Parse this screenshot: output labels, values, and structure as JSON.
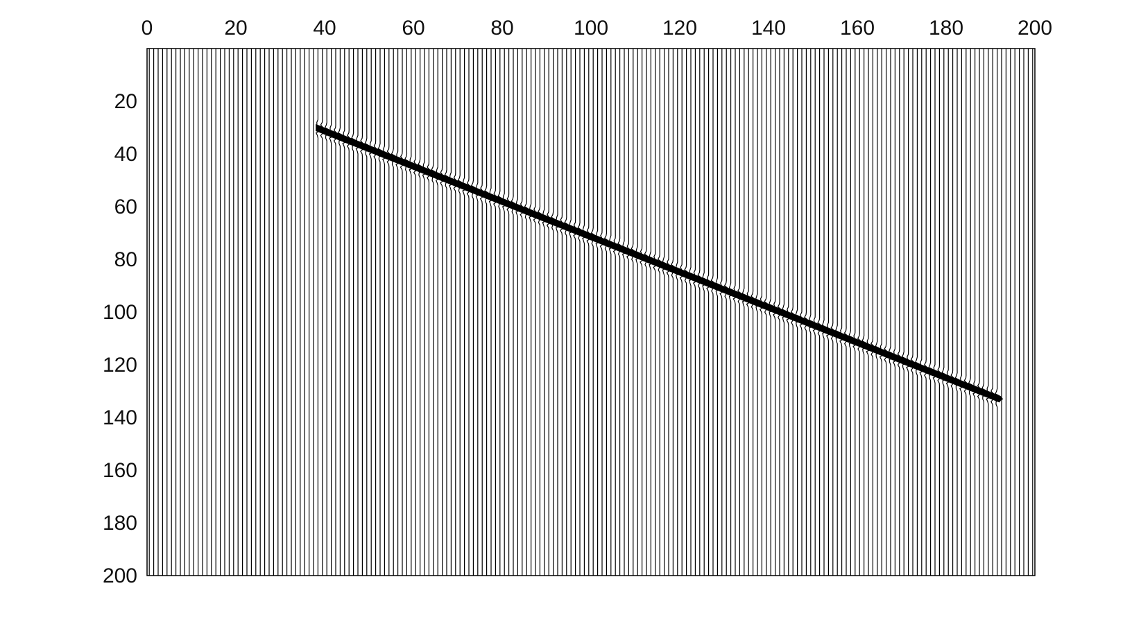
{
  "chart_data": {
    "type": "wiggle",
    "title": "",
    "xlabel": "",
    "ylabel": "",
    "xlim": [
      0,
      200
    ],
    "ylim": [
      200,
      0
    ],
    "x_axis_position": "top",
    "y_axis_position": "left",
    "x_ticks": [
      "0",
      "20",
      "40",
      "60",
      "80",
      "100",
      "120",
      "140",
      "160",
      "180",
      "200"
    ],
    "y_ticks": [
      "20",
      "40",
      "60",
      "80",
      "100",
      "120",
      "140",
      "160",
      "180",
      "200"
    ],
    "trace_count": 200,
    "event": {
      "start": {
        "x": 38,
        "y": 30
      },
      "end": {
        "x": 192,
        "y": 133
      }
    },
    "colors": {
      "traces": "#000000",
      "event_fill": "#000000",
      "background": "#ffffff"
    }
  }
}
